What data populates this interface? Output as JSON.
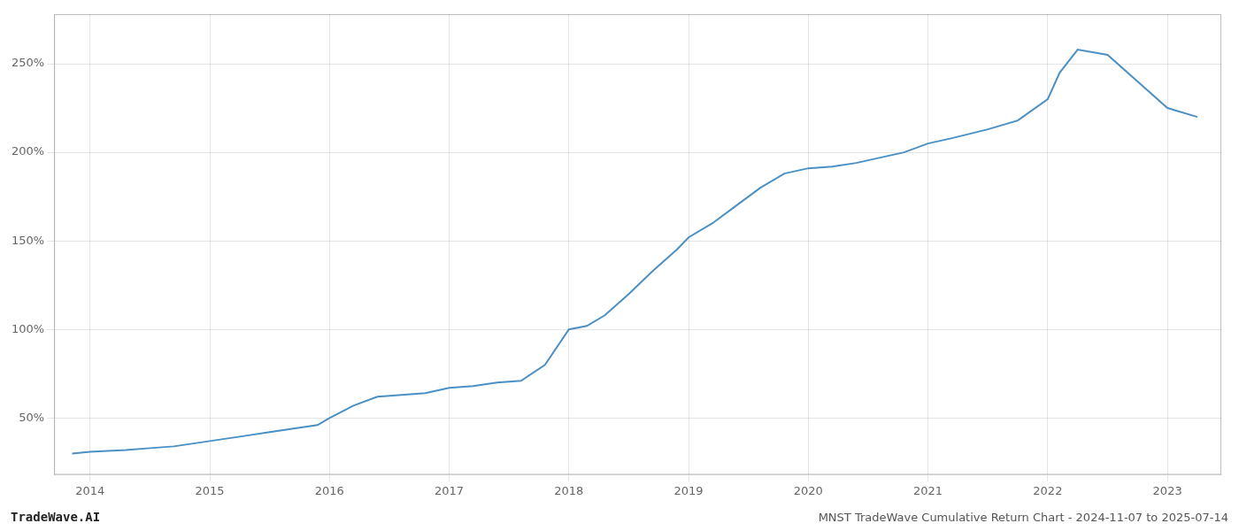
{
  "chart_data": {
    "type": "line",
    "title": "MNST TradeWave Cumulative Return Chart - 2024-11-07 to 2025-07-14",
    "annotations": [
      "TradeWave.AI"
    ],
    "color": "#4a90c4",
    "x": [
      2013.85,
      2014.0,
      2014.15,
      2014.3,
      2014.5,
      2014.7,
      2014.9,
      2015.1,
      2015.3,
      2015.5,
      2015.7,
      2015.9,
      2016.0,
      2016.2,
      2016.4,
      2016.6,
      2016.8,
      2017.0,
      2017.2,
      2017.4,
      2017.6,
      2017.8,
      2018.0,
      2018.15,
      2018.3,
      2018.5,
      2018.7,
      2018.9,
      2019.0,
      2019.2,
      2019.4,
      2019.6,
      2019.8,
      2020.0,
      2020.2,
      2020.4,
      2020.6,
      2020.8,
      2021.0,
      2021.2,
      2021.5,
      2021.75,
      2022.0,
      2022.1,
      2022.25,
      2022.5,
      2022.75,
      2023.0,
      2023.25
    ],
    "values": [
      30,
      31,
      31.5,
      32,
      33,
      34,
      36,
      38,
      40,
      42,
      44,
      46,
      50,
      57,
      62,
      63,
      64,
      67,
      68,
      70,
      71,
      80,
      100,
      102,
      108,
      120,
      133,
      145,
      152,
      160,
      170,
      180,
      188,
      191,
      192,
      194,
      197,
      200,
      205,
      208,
      213,
      218,
      230,
      245,
      258,
      255,
      240,
      225,
      220
    ],
    "xlim": [
      2013.7,
      2023.45
    ],
    "xticks": [
      2014,
      2015,
      2016,
      2017,
      2018,
      2019,
      2020,
      2021,
      2022,
      2023
    ],
    "ylim": [
      18,
      278
    ],
    "yticks": [
      {
        "value": 50,
        "label": "50%"
      },
      {
        "value": 100,
        "label": "100%"
      },
      {
        "value": 150,
        "label": "150%"
      },
      {
        "value": 200,
        "label": "200%"
      },
      {
        "value": 250,
        "label": "250%"
      }
    ],
    "grid": true
  }
}
